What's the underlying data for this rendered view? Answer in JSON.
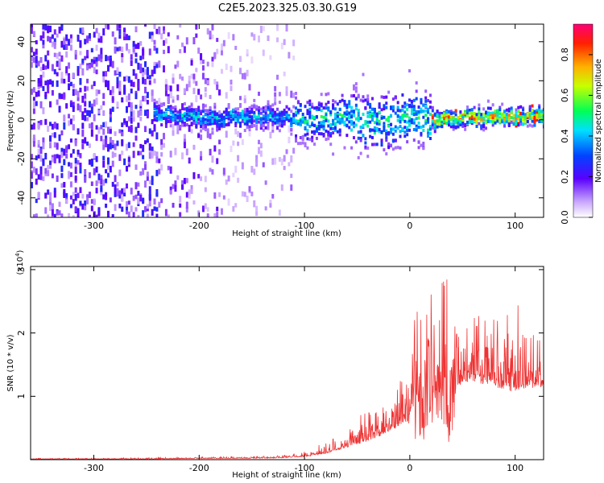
{
  "title": "C2E5.2023.325.03.30.G19",
  "chart_data": [
    {
      "type": "heatmap",
      "xlabel": "Height of straight line (km)",
      "ylabel": "Frequency (Hz)",
      "xlim": [
        -360,
        127
      ],
      "ylim": [
        -50,
        49
      ],
      "xticks": [
        -300,
        -200,
        -100,
        0,
        100
      ],
      "yticks": [
        -40,
        -20,
        0,
        20,
        40
      ],
      "grid": false,
      "colorbar": {
        "label": "Normalized spectral amplitude",
        "range": [
          0,
          0.95
        ],
        "ticks": [
          "0.0",
          "0.2",
          "0.4",
          "0.6",
          "0.8"
        ]
      },
      "description_points": {
        "ridge_x": [
          -240,
          -200,
          -150,
          -100,
          -60,
          -30,
          0,
          20,
          60,
          100,
          120
        ],
        "ridge_y": [
          3,
          1,
          2,
          0,
          1,
          -2,
          2,
          0,
          1,
          2,
          2
        ]
      }
    },
    {
      "type": "line",
      "xlabel": "Height of straight line (km)",
      "ylabel": "SNR (10 * v/v)",
      "yscale_label": "(x10",
      "yscale_exp": "4",
      "yscale_close": ")",
      "xlim": [
        -360,
        127
      ],
      "ylim": [
        0,
        3.05
      ],
      "xticks": [
        -300,
        -200,
        -100,
        0,
        100
      ],
      "yticks": [
        1,
        2,
        3
      ],
      "color": "#ee3333",
      "grid": false,
      "envelope": {
        "x": [
          -360,
          -250,
          -200,
          -150,
          -120,
          -100,
          -80,
          -60,
          -40,
          -20,
          -5,
          0,
          10,
          20,
          30,
          40,
          45,
          50,
          60,
          70,
          80,
          90,
          100,
          110,
          120,
          127
        ],
        "base": [
          0.01,
          0.01,
          0.02,
          0.02,
          0.03,
          0.05,
          0.1,
          0.2,
          0.3,
          0.45,
          0.6,
          0.6,
          0.7,
          0.75,
          0.8,
          0.8,
          1.2,
          1.25,
          1.3,
          1.25,
          1.2,
          1.15,
          1.1,
          1.15,
          1.2,
          1.2
        ],
        "peak": [
          0.02,
          0.03,
          0.05,
          0.05,
          0.07,
          0.15,
          0.3,
          0.5,
          0.8,
          1.1,
          1.5,
          2.3,
          2.0,
          2.5,
          3.05,
          2.2,
          2.3,
          2.2,
          2.5,
          2.2,
          2.4,
          2.2,
          2.75,
          2.0,
          2.1,
          2.0
        ]
      }
    }
  ]
}
